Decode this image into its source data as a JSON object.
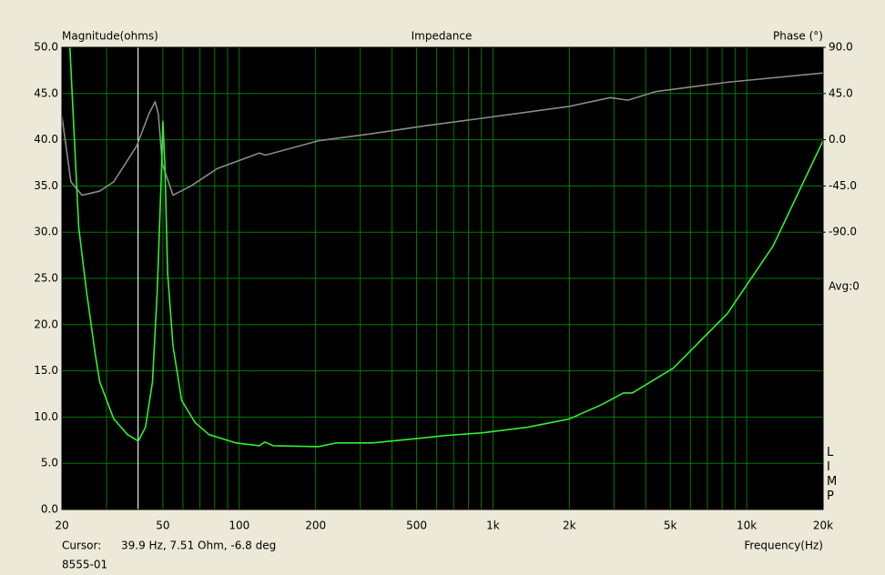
{
  "chart_data": {
    "type": "line",
    "title": "Impedance",
    "y_label": "Magnitude(ohms)",
    "y2_label": "Phase (°)",
    "x_label": "Frequency(Hz)",
    "avg_label": "Avg:0",
    "app_label": "LIMP",
    "cursor": {
      "label": "Cursor:",
      "text": "39.9 Hz, 7.51 Ohm, -6.8 deg",
      "x": 39.9,
      "color": "#ffffff"
    },
    "file_name": "8555-01",
    "xscale": "log",
    "xlim": [
      20,
      20000
    ],
    "xticks": [
      20,
      50,
      100,
      200,
      500,
      {
        "value": 1000,
        "label": "1k"
      },
      {
        "value": 2000,
        "label": "2k"
      },
      {
        "value": 5000,
        "label": "5k"
      },
      {
        "value": 10000,
        "label": "10k"
      },
      {
        "value": 20000,
        "label": "20k"
      }
    ],
    "xminor": [
      30,
      40,
      60,
      70,
      80,
      90,
      300,
      400,
      600,
      700,
      800,
      900,
      3000,
      4000,
      6000,
      7000,
      8000,
      9000
    ],
    "ylim": [
      0,
      50
    ],
    "yticks": [
      {
        "value": 0,
        "label": "0.0"
      },
      {
        "value": 5,
        "label": "5.0"
      },
      {
        "value": 10,
        "label": "10.0"
      },
      {
        "value": 15,
        "label": "15.0"
      },
      {
        "value": 20,
        "label": "20.0"
      },
      {
        "value": 25,
        "label": "25.0"
      },
      {
        "value": 30,
        "label": "30.0"
      },
      {
        "value": 35,
        "label": "35.0"
      },
      {
        "value": 40,
        "label": "40.0"
      },
      {
        "value": 45,
        "label": "45.0"
      },
      {
        "value": 50,
        "label": "50.0"
      }
    ],
    "y2lim": [
      -360,
      90
    ],
    "y2ticks": [
      {
        "value": 90,
        "label": "90.0"
      },
      {
        "value": 45,
        "label": "45.0"
      },
      {
        "value": 0,
        "label": "0.0"
      },
      {
        "value": -45,
        "label": "-45.0"
      },
      {
        "value": -90,
        "label": "-90.0"
      }
    ],
    "grid": true,
    "grid_color": "#007a00",
    "background": "#000000",
    "series": [
      {
        "name": "Magnitude",
        "color": "#33ee33",
        "x": [
          21.5,
          23.3,
          25,
          27.1,
          28.2,
          32,
          36.3,
          40,
          42.7,
          45.5,
          47.5,
          49.2,
          50,
          50.9,
          52.2,
          54.8,
          59.3,
          67,
          76,
          97,
          120,
          126,
          136,
          205,
          241,
          335,
          510,
          650,
          910,
          1370,
          2000,
          2660,
          3270,
          3540,
          5140,
          8400,
          12700,
          20000
        ],
        "values": [
          50,
          30.5,
          23.6,
          16.7,
          13.8,
          9.8,
          8.1,
          7.4,
          8.9,
          13.8,
          23.6,
          35.4,
          42,
          37.4,
          25.6,
          17.7,
          11.8,
          9.4,
          8.1,
          7.2,
          6.9,
          7.3,
          6.9,
          6.8,
          7.2,
          7.2,
          7.7,
          8.0,
          8.3,
          8.9,
          9.8,
          11.3,
          12.6,
          12.6,
          15.3,
          21.2,
          28.5,
          39.9
        ]
      },
      {
        "name": "Phase",
        "color": "#8a8a8a",
        "axis": "y2",
        "x": [
          20,
          21.7,
          24,
          28.2,
          32,
          39.5,
          44,
          46.6,
          48,
          49.7,
          54.8,
          64.5,
          82,
          120,
          127,
          205,
          335,
          555,
          910,
          2000,
          2900,
          3400,
          4400,
          8400,
          20000
        ],
        "values": [
          22.9,
          -41,
          -54,
          -50,
          -41,
          -5.7,
          25,
          37,
          25,
          -23,
          -54,
          -45,
          -28,
          -13,
          -15,
          -1,
          6,
          14,
          21,
          32.5,
          41,
          38.5,
          47,
          56,
          65
        ]
      }
    ]
  }
}
